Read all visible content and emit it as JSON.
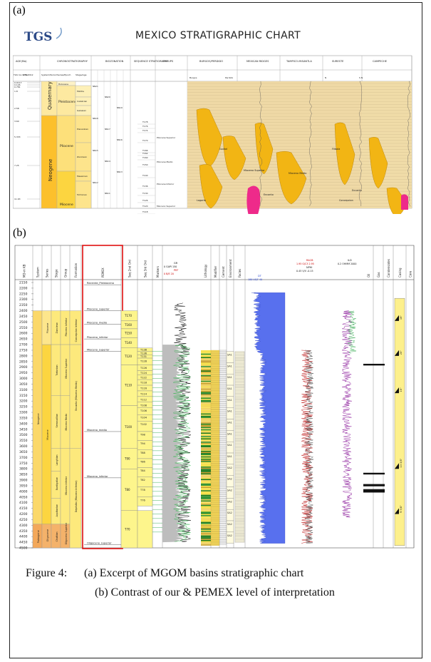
{
  "panel_a": {
    "label": "(a)",
    "logo": "TGS",
    "title": "MEXICO STRATIGRAPHIC  CHART",
    "col_headers": [
      "AGE(Ma)",
      "CHRONOSTRATIGRAPHY",
      "BIOZONATION",
      "SEQUENCE STRATIGRAPHY",
      "GROUPS",
      "BURGOS/PERDIDO",
      "MEXICAN RIDGES",
      "TAMPICO-MISANTLA",
      "SURESTE",
      "CAMPECHE"
    ],
    "sub_headers": [
      "TGS Ice Order",
      "GTS 2012",
      "System/Period",
      "Series/Epoch",
      "Stage/Age"
    ],
    "basin_sub": [
      "Burgos",
      "Perdido",
      "N",
      "S N"
    ],
    "periods": [
      "Quaternary",
      "Neogene"
    ],
    "epochs": [
      "Holocene",
      "Pleistocene",
      "Pliocene",
      "Miocene"
    ],
    "stages": [
      "Middle",
      "Calabrian",
      "Gelasian",
      "Piacenzian",
      "Zanclean",
      "Messinian",
      "Tortonian"
    ],
    "ages": [
      "0.0117",
      "0.126",
      "0.781",
      "1.8",
      "2.58",
      "3.60",
      "5.333",
      "7.25",
      "11.63"
    ],
    "seq": [
      "T178",
      "T176",
      "T174",
      "T170",
      "T166",
      "T162",
      "T160",
      "T150",
      "T140",
      "T136",
      "T130",
      "T126",
      "T120",
      "T118",
      "T115",
      "T110"
    ],
    "groups": [
      "Pliocene Superior",
      "Pliocene Medio",
      "Pliocene Inferior",
      "Mioceno Superior"
    ],
    "fm_labels": [
      "Goliad",
      "Lagarto",
      "Mioceno Superior",
      "Encanto",
      "Oakville",
      "Mioceno Medio",
      "Filisola",
      "Concepcion",
      "Encanto",
      "Tuxpan"
    ]
  },
  "panel_b": {
    "label": "(b)",
    "headers": [
      "MD-m KB",
      "System",
      "Series",
      "Stage",
      "Group",
      "Formation",
      "PEMEX",
      "Seq 2nd Ord",
      "Seq 3rd Ord",
      "Markers",
      "Lithology",
      "Modifier",
      "Cement",
      "Environment",
      "Facies",
      "Oil",
      "Gas",
      "Condensates",
      "Casing",
      "Core"
    ],
    "log_headers": [
      {
        "name": "GR",
        "range": "0 GAPI 150"
      },
      {
        "name": "PEF",
        "range": "0 B/E 20"
      },
      {
        "name": "DT",
        "range": "180 US/F 40"
      },
      {
        "name": "RACB",
        "range": "1.95 G/C3 2.95"
      },
      {
        "name": "NPHI",
        "range": "0.45 V/V -0.15"
      },
      {
        "name": "ILD",
        "range": "0.2 OHMM 2000"
      }
    ],
    "depths": [
      "2150",
      "2200",
      "2250",
      "2300",
      "2350",
      "2400",
      "2450",
      "2500",
      "2550",
      "2600",
      "2650",
      "2700",
      "2750",
      "2800",
      "2850",
      "2900",
      "2950",
      "3000",
      "3050",
      "3100",
      "3150",
      "3200",
      "3250",
      "3300",
      "3350",
      "3400",
      "3450",
      "3500",
      "3550",
      "3600",
      "3650",
      "3700",
      "3750",
      "3800",
      "3850",
      "3900",
      "3950",
      "4000",
      "4050",
      "4100",
      "4150",
      "4200",
      "4250",
      "4300",
      "4350",
      "4400",
      "4450",
      "4500"
    ],
    "systems": [
      "Neogene",
      "Paleogene"
    ],
    "series": [
      "Pliocene",
      "Miocene",
      "Oligocene"
    ],
    "stages": [
      "Zanclean",
      "Tortonian",
      "Serravallian",
      "Langhian",
      "Burdigalian",
      "Aquitanian",
      "Chattian"
    ],
    "groups": [
      "Plioceno Inferior",
      "Mioceno Superior",
      "Mioceno Medio",
      "Mioceno Inferior",
      "Oligoceno Superior"
    ],
    "formations": [
      "Concepcion Inferior",
      "Encanto (Mioceno Medio)",
      "Depósito (Mioceno Inferior)"
    ],
    "pemex": [
      "Reciente_Pleistoceno",
      "Plioceno_superior",
      "Plioceno_medio",
      "Plioceno_inferior",
      "Mioceno_superior",
      "Mioceno_medio",
      "Mioceno_inferior",
      "Oligoceno_superior"
    ],
    "seq2": [
      "T170",
      "T160",
      "T150",
      "T140",
      "T120",
      "T110",
      "T100",
      "T90",
      "T80",
      "T70"
    ],
    "seq3": [
      "T138",
      "T136",
      "T131",
      "T128",
      "T126",
      "T124",
      "T122",
      "T118",
      "T116",
      "T114",
      "T112",
      "T108",
      "T106",
      "T104",
      "T102",
      "T98",
      "T94",
      "T88",
      "T86",
      "T84",
      "T82",
      "T78",
      "T76"
    ],
    "casing": [
      "16\"",
      "20\"",
      "16\"",
      "13 3/8\"",
      "9 5/8\""
    ],
    "env_labels": [
      "SA1",
      "SA1",
      "SA1",
      "SA1",
      "SA1",
      "SA1",
      "SA1",
      "SA1",
      "SA1",
      "SA1",
      "SA2",
      "SA2",
      "SA2",
      "SA2",
      "SA2",
      "SA2",
      "SA2"
    ]
  },
  "caption": {
    "prefix": "Figure 4:",
    "line1": "(a) Excerpt of MGOM basins stratigraphic chart",
    "line2": "(b) Contrast of our & PEMEX level of interpretation"
  }
}
